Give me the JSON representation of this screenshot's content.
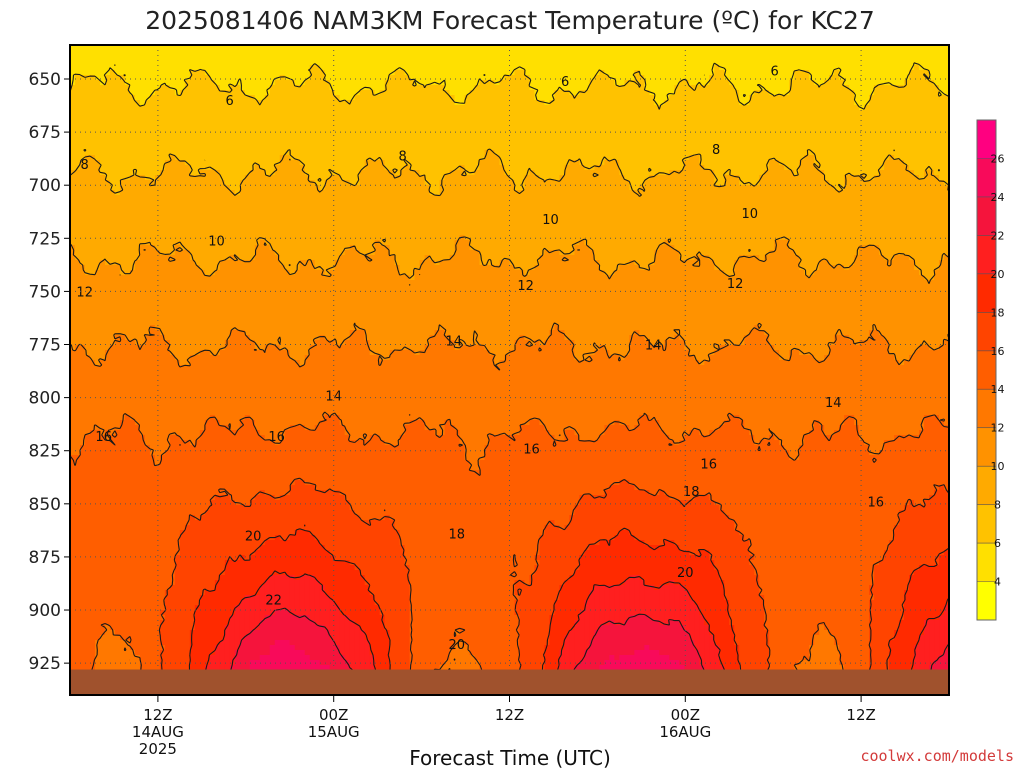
{
  "chart_data": {
    "type": "heatmap",
    "title": "2025081406 NAM3KM Forecast Temperature (ºC) for KC27",
    "xlabel": "Forecast Time (UTC)",
    "ylabel": "",
    "y_ticks": [
      "650",
      "675",
      "700",
      "725",
      "750",
      "775",
      "800",
      "825",
      "850",
      "875",
      "900",
      "925"
    ],
    "ylim": [
      634,
      940
    ],
    "y_unit": "hPa",
    "x_ticks": [
      {
        "hour": 12,
        "label": "12Z",
        "date": "14AUG",
        "year": "2025"
      },
      {
        "hour": 24,
        "label": "00Z",
        "date": "15AUG",
        "year": ""
      },
      {
        "hour": 36,
        "label": "12Z",
        "date": "",
        "year": ""
      },
      {
        "hour": 48,
        "label": "00Z",
        "date": "16AUG",
        "year": ""
      },
      {
        "hour": 60,
        "label": "12Z",
        "date": "",
        "year": ""
      }
    ],
    "xlim": [
      6,
      66
    ],
    "grid": true,
    "colorbar": {
      "position": "right",
      "levels": [
        2,
        4,
        6,
        8,
        10,
        12,
        14,
        16,
        18,
        20,
        22,
        24,
        26,
        28
      ],
      "labels": [
        "4",
        "6",
        "8",
        "10",
        "12",
        "14",
        "16",
        "18",
        "20",
        "22",
        "24",
        "26"
      ],
      "colors": [
        "#ffff00",
        "#ffe000",
        "#ffc200",
        "#ffaa00",
        "#ff9200",
        "#ff7800",
        "#ff5e00",
        "#ff4400",
        "#ff2a00",
        "#ff1f1f",
        "#f5143c",
        "#f80a5a",
        "#ff0080"
      ]
    },
    "contour_levels": [
      6,
      8,
      10,
      12,
      14,
      16,
      18,
      20,
      22
    ],
    "contour_labels": [
      {
        "text": "6",
        "x": 16.9,
        "p": 660
      },
      {
        "text": "6",
        "x": 39.8,
        "p": 651
      },
      {
        "text": "6",
        "x": 54.1,
        "p": 646
      },
      {
        "text": "8",
        "x": 7.0,
        "p": 690
      },
      {
        "text": "8",
        "x": 28.7,
        "p": 686
      },
      {
        "text": "8",
        "x": 50.1,
        "p": 683
      },
      {
        "text": "10",
        "x": 16.0,
        "p": 726
      },
      {
        "text": "10",
        "x": 38.8,
        "p": 716
      },
      {
        "text": "10",
        "x": 52.4,
        "p": 713
      },
      {
        "text": "12",
        "x": 7.0,
        "p": 750
      },
      {
        "text": "12",
        "x": 37.1,
        "p": 747
      },
      {
        "text": "12",
        "x": 51.4,
        "p": 746
      },
      {
        "text": "14",
        "x": 32.2,
        "p": 773
      },
      {
        "text": "14",
        "x": 24.0,
        "p": 799
      },
      {
        "text": "14",
        "x": 45.8,
        "p": 775
      },
      {
        "text": "14",
        "x": 58.1,
        "p": 802
      },
      {
        "text": "16",
        "x": 8.3,
        "p": 818
      },
      {
        "text": "16",
        "x": 20.1,
        "p": 818
      },
      {
        "text": "16",
        "x": 37.5,
        "p": 824
      },
      {
        "text": "16",
        "x": 49.6,
        "p": 831
      },
      {
        "text": "16",
        "x": 61.0,
        "p": 849
      },
      {
        "text": "18",
        "x": 32.4,
        "p": 864
      },
      {
        "text": "18",
        "x": 48.4,
        "p": 844
      },
      {
        "text": "20",
        "x": 18.5,
        "p": 865
      },
      {
        "text": "20",
        "x": 48.0,
        "p": 882
      },
      {
        "text": "20",
        "x": 32.4,
        "p": 916
      },
      {
        "text": "22",
        "x": 19.9,
        "p": 895
      }
    ],
    "surface_pressure_hpa": 928,
    "surface_color": "#a0522d"
  },
  "watermark": "coolwx.com/models",
  "colors": {
    "frame": "#000000",
    "contour": "#1a1a1a",
    "grid": "#555555",
    "surface": "#a0522d"
  }
}
